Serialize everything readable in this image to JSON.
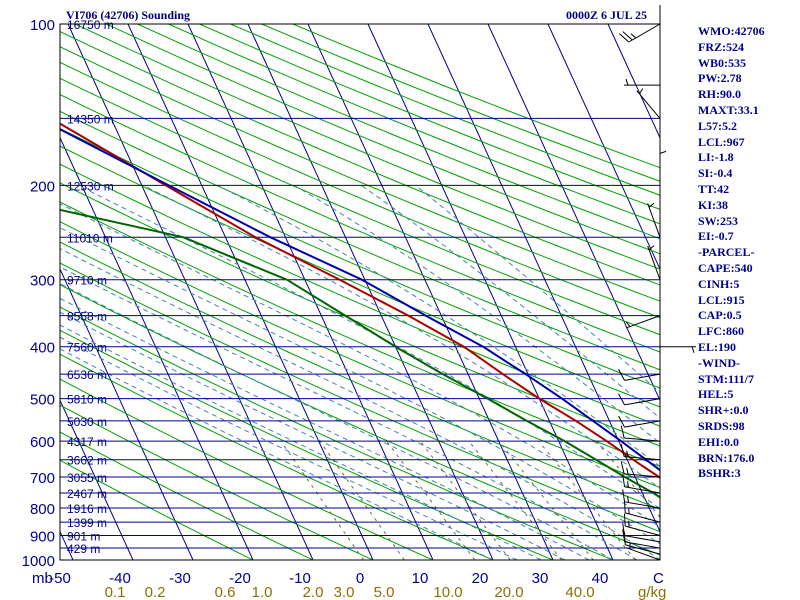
{
  "header": {
    "station": "VI706 (42706) Sounding",
    "time": "0000Z  6 JUL 25"
  },
  "indices": [
    "WMO:42706",
    "FRZ:524",
    "WB0:535",
    "PW:2.78",
    "RH:90.0",
    "MAXT:33.1",
    "L57:5.2",
    "LCL:967",
    "LI:-1.8",
    "SI:-0.4",
    "TT:42",
    "KI:38",
    "SW:253",
    "EI:-0.7",
    "-PARCEL-",
    "CAPE:540",
    "CINH:5",
    "LCL:915",
    "CAP:0.5",
    "LFC:860",
    "EL:190",
    "-WIND-",
    "STM:111/7",
    "HEL:5",
    "SHR+:0.0",
    "SRDS:98",
    "EHI:0.0",
    "BRN:176.0",
    "BSHR:3"
  ],
  "colors": {
    "isobar": "#00008b",
    "isotherm": "#00008b",
    "dry_adiabat": "#00a000",
    "moist_adiabat": "#4682b4",
    "mixing_ratio": "#6b6b3a",
    "mixing_ratio_label": "#8b7000",
    "temperature": "#aa0000",
    "dewpoint": "#006400",
    "parcel": "#0000aa",
    "wind": "#000000",
    "axis_label": "#00008b"
  },
  "chart_data": {
    "type": "line",
    "title": "VI706 (42706) Sounding",
    "xlabel": "C",
    "ylabel": "mb",
    "x_range_celsius": [
      -50,
      50
    ],
    "y_range_mb": [
      100,
      1000
    ],
    "y_scale": "log",
    "pressure_ticks": [
      100,
      200,
      300,
      400,
      500,
      600,
      700,
      800,
      900,
      1000
    ],
    "temperature_ticks": [
      -50,
      -40,
      -30,
      -20,
      -10,
      0,
      10,
      20,
      30,
      40
    ],
    "mixing_ratio_labels": [
      "0.1",
      "0.2",
      "0.6",
      "1.0",
      "2.0",
      "3.0",
      "5.0",
      "10.0",
      "20.0",
      "40.0"
    ],
    "mixing_ratio_unit": "g/kg",
    "height_labels": [
      {
        "p": 100,
        "label": "16750 m"
      },
      {
        "p": 150,
        "label": "14350 m"
      },
      {
        "p": 200,
        "label": "12530 m"
      },
      {
        "p": 250,
        "label": "11010 m"
      },
      {
        "p": 300,
        "label": "9710 m"
      },
      {
        "p": 350,
        "label": "8558 m"
      },
      {
        "p": 400,
        "label": "7560 m"
      },
      {
        "p": 450,
        "label": "6536 m"
      },
      {
        "p": 500,
        "label": "5810 m"
      },
      {
        "p": 550,
        "label": "5030 m"
      },
      {
        "p": 600,
        "label": "4317 m"
      },
      {
        "p": 650,
        "label": "3662 m"
      },
      {
        "p": 700,
        "label": "3055 m"
      },
      {
        "p": 750,
        "label": "2467 m"
      },
      {
        "p": 800,
        "label": "1916 m"
      },
      {
        "p": 850,
        "label": "1399 m"
      },
      {
        "p": 900,
        "label": "901 m"
      },
      {
        "p": 950,
        "label": "429 m"
      }
    ],
    "series": [
      {
        "name": "Temperature",
        "points": [
          [
            1000,
            29.0
          ],
          [
            975,
            26.8
          ],
          [
            950,
            24.6
          ],
          [
            925,
            23.0
          ],
          [
            900,
            21.6
          ],
          [
            850,
            20.0
          ],
          [
            800,
            18.4
          ],
          [
            750,
            16.0
          ],
          [
            700,
            14.0
          ],
          [
            650,
            11.0
          ],
          [
            600,
            8.0
          ],
          [
            550,
            4.4
          ],
          [
            500,
            0.0
          ],
          [
            450,
            -4.2
          ],
          [
            400,
            -8.6
          ],
          [
            350,
            -15.5
          ],
          [
            300,
            -24.2
          ],
          [
            250,
            -35.0
          ],
          [
            200,
            -46.0
          ],
          [
            150,
            -60.0
          ],
          [
            130,
            -67.5
          ],
          [
            100,
            -76.0
          ]
        ]
      },
      {
        "name": "Dewpoint",
        "points": [
          [
            1000,
            26.4
          ],
          [
            975,
            24.8
          ],
          [
            950,
            22.6
          ],
          [
            925,
            21.2
          ],
          [
            900,
            19.6
          ],
          [
            850,
            16.8
          ],
          [
            800,
            14.6
          ],
          [
            750,
            11.8
          ],
          [
            700,
            8.3
          ],
          [
            650,
            4.8
          ],
          [
            600,
            1.0
          ],
          [
            550,
            -3.8
          ],
          [
            500,
            -8.6
          ],
          [
            450,
            -14.2
          ],
          [
            400,
            -20.0
          ],
          [
            350,
            -26.0
          ],
          [
            300,
            -33.0
          ],
          [
            250,
            -47.0
          ],
          [
            200,
            -82.0
          ],
          [
            150,
            -83.0
          ],
          [
            120,
            -85.0
          ],
          [
            100,
            -91.0
          ]
        ]
      },
      {
        "name": "Parcel",
        "points": [
          [
            970,
            29.0
          ],
          [
            950,
            26.6
          ],
          [
            915,
            23.8
          ],
          [
            860,
            21.8
          ],
          [
            800,
            19.7
          ],
          [
            700,
            15.7
          ],
          [
            600,
            10.4
          ],
          [
            500,
            3.8
          ],
          [
            450,
            -0.4
          ],
          [
            400,
            -5.4
          ],
          [
            350,
            -12.6
          ],
          [
            300,
            -20.5
          ],
          [
            250,
            -32.5
          ],
          [
            200,
            -45.5
          ],
          [
            150,
            -62.0
          ],
          [
            120,
            -71.5
          ]
        ]
      }
    ],
    "wind_barbs": [
      {
        "p": 1000,
        "dir": 290,
        "spd": 5
      },
      {
        "p": 975,
        "dir": 285,
        "spd": 8
      },
      {
        "p": 950,
        "dir": 280,
        "spd": 10
      },
      {
        "p": 925,
        "dir": 280,
        "spd": 10
      },
      {
        "p": 900,
        "dir": 285,
        "spd": 15
      },
      {
        "p": 850,
        "dir": 285,
        "spd": 15
      },
      {
        "p": 800,
        "dir": 280,
        "spd": 15
      },
      {
        "p": 750,
        "dir": 280,
        "spd": 15
      },
      {
        "p": 700,
        "dir": 275,
        "spd": 15
      },
      {
        "p": 650,
        "dir": 275,
        "spd": 15
      },
      {
        "p": 600,
        "dir": 275,
        "spd": 10
      },
      {
        "p": 550,
        "dir": 260,
        "spd": 10
      },
      {
        "p": 500,
        "dir": 260,
        "spd": 10
      },
      {
        "p": 450,
        "dir": 260,
        "spd": 10
      },
      {
        "p": 400,
        "dir": 90,
        "spd": 5
      },
      {
        "p": 350,
        "dir": 250,
        "spd": 5
      },
      {
        "p": 300,
        "dir": 340,
        "spd": 5
      },
      {
        "p": 250,
        "dir": 340,
        "spd": 5
      },
      {
        "p": 200,
        "dir": 360,
        "spd": 5
      },
      {
        "p": 150,
        "dir": 320,
        "spd": 5
      },
      {
        "p": 130,
        "dir": 270,
        "spd": 5
      },
      {
        "p": 100,
        "dir": 240,
        "spd": 25
      }
    ]
  }
}
